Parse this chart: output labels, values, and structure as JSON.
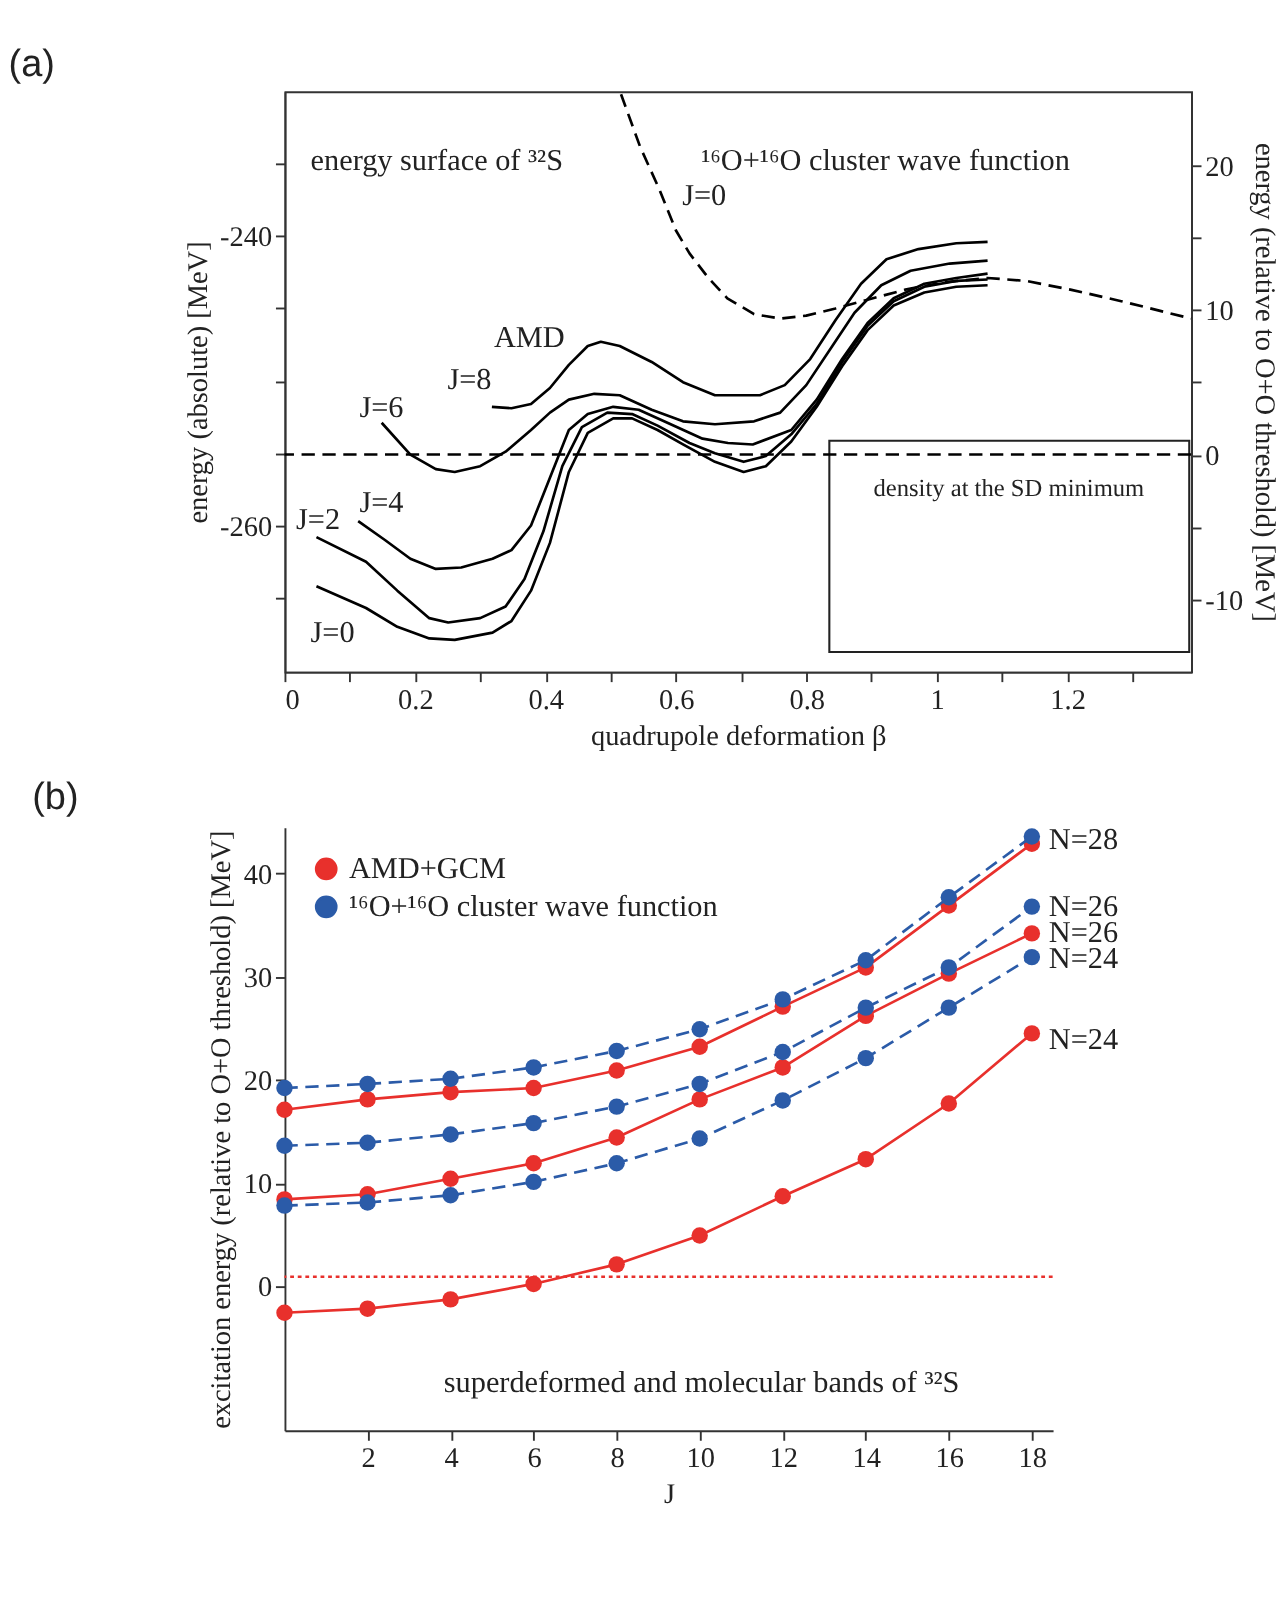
{
  "chart_data": [
    {
      "type": "line",
      "title": "(a)",
      "xlabel": "quadrupole deformation β",
      "ylabel": "energy (absolute) [MeV]",
      "y2label": "energy (relative to  O+O threshold) [MeV]",
      "xlim": [
        0,
        1.39
      ],
      "xticks": [
        0,
        {
          "value": 0.1,
          "label": null
        },
        0.2,
        {
          "value": 0.3,
          "label": null
        },
        0.4,
        {
          "value": 0.5,
          "label": null
        },
        0.6,
        {
          "value": 0.7,
          "label": null
        },
        0.8,
        {
          "value": 0.9,
          "label": null
        },
        1,
        {
          "value": 1.1,
          "label": null
        },
        1.2,
        {
          "value": 1.3,
          "label": null
        }
      ],
      "ylim": [
        -270.1,
        -230.0
      ],
      "yticks": [
        {
          "value": -265,
          "label": null
        },
        -260,
        {
          "value": -255,
          "label": null
        },
        {
          "value": -250,
          "label": null
        },
        {
          "value": -245,
          "label": null
        },
        -240,
        {
          "value": -235,
          "label": null
        }
      ],
      "y2lim": [
        -15.0,
        25.1
      ],
      "y2ticks": [
        -10,
        {
          "value": -5,
          "label": null
        },
        0,
        {
          "value": 5,
          "label": null
        },
        10,
        {
          "value": 15,
          "label": null
        },
        20
      ],
      "grid": false,
      "legend": false,
      "marker": "none",
      "line_style": "solid",
      "series": [
        {
          "color": "#000000",
          "x": [
            0.049,
            0.125,
            0.173,
            0.222,
            0.261,
            0.319,
            0.348,
            0.378,
            0.407,
            0.436,
            0.465,
            0.504,
            0.533,
            0.572,
            0.611,
            0.66,
            0.704,
            0.738,
            0.777,
            0.816,
            0.855,
            0.894,
            0.934,
            0.981,
            1.03,
            1.078
          ],
          "values": [
            -264.2,
            -265.7,
            -267.0,
            -267.8,
            -267.9,
            -267.4,
            -266.6,
            -264.5,
            -261.2,
            -256.3,
            -253.6,
            -252.6,
            -252.6,
            -253.4,
            -254.4,
            -255.6,
            -256.3,
            -255.9,
            -254.2,
            -251.8,
            -249.0,
            -246.5,
            -244.8,
            -243.9,
            -243.5,
            -243.4
          ]
        },
        {
          "color": "#000000",
          "x": [
            0.049,
            0.125,
            0.173,
            0.222,
            0.251,
            0.3,
            0.339,
            0.368,
            0.397,
            0.426,
            0.456,
            0.495,
            0.533,
            0.572,
            0.621,
            0.66,
            0.704,
            0.738,
            0.777,
            0.816,
            0.855,
            0.894,
            0.934,
            0.981,
            1.03,
            1.078
          ],
          "values": [
            -260.8,
            -262.5,
            -264.5,
            -266.4,
            -266.7,
            -266.4,
            -265.6,
            -263.7,
            -260.4,
            -255.9,
            -253.2,
            -252.2,
            -252.3,
            -253.1,
            -254.3,
            -255.0,
            -255.6,
            -255.2,
            -253.7,
            -251.6,
            -248.7,
            -246.2,
            -244.5,
            -243.5,
            -243.1,
            -243.0
          ]
        },
        {
          "color": "#000000",
          "x": [
            0.113,
            0.154,
            0.193,
            0.232,
            0.271,
            0.319,
            0.348,
            0.378,
            0.407,
            0.436,
            0.465,
            0.504,
            0.543,
            0.582,
            0.641,
            0.68,
            0.718,
            0.777,
            0.816,
            0.855,
            0.894,
            0.934,
            0.981,
            1.03,
            1.078
          ],
          "values": [
            -259.7,
            -261.0,
            -262.3,
            -263.0,
            -262.9,
            -262.3,
            -261.7,
            -260.0,
            -256.7,
            -253.4,
            -252.3,
            -251.8,
            -252.0,
            -252.8,
            -254.0,
            -254.3,
            -254.4,
            -253.4,
            -251.3,
            -248.5,
            -246.0,
            -244.3,
            -243.3,
            -242.9,
            -242.6
          ]
        },
        {
          "color": "#000000",
          "x": [
            0.149,
            0.193,
            0.232,
            0.261,
            0.3,
            0.339,
            0.378,
            0.407,
            0.436,
            0.475,
            0.514,
            0.563,
            0.611,
            0.66,
            0.72,
            0.76,
            0.8,
            0.84,
            0.874,
            0.915,
            0.96,
            1.02,
            1.078
          ],
          "values": [
            -252.9,
            -255.1,
            -256.1,
            -256.3,
            -255.9,
            -254.9,
            -253.4,
            -252.2,
            -251.3,
            -250.9,
            -251.0,
            -252.0,
            -252.8,
            -253.0,
            -252.8,
            -252.2,
            -250.3,
            -247.6,
            -245.3,
            -243.4,
            -242.4,
            -241.9,
            -241.7
          ]
        },
        {
          "color": "#000000",
          "x": [
            0.318,
            0.348,
            0.378,
            0.407,
            0.436,
            0.465,
            0.485,
            0.514,
            0.563,
            0.611,
            0.66,
            0.729,
            0.767,
            0.806,
            0.845,
            0.884,
            0.923,
            0.972,
            1.03,
            1.078
          ],
          "values": [
            -251.8,
            -251.9,
            -251.6,
            -250.5,
            -248.9,
            -247.6,
            -247.3,
            -247.6,
            -248.7,
            -250.1,
            -251.0,
            -251.0,
            -250.3,
            -248.5,
            -245.8,
            -243.3,
            -241.6,
            -240.9,
            -240.5,
            -240.4
          ]
        },
        {
          "color": "#000000",
          "axis": "y2",
          "line_style": "dashed",
          "x": [
            0.516,
            0.545,
            0.575,
            0.6,
            0.621,
            0.65,
            0.679,
            0.72,
            0.76,
            0.8,
            0.845,
            0.894,
            0.952,
            1.01,
            1.078,
            1.137,
            1.205,
            1.283,
            1.39
          ],
          "values": [
            24.9,
            21.3,
            18.3,
            15.5,
            13.9,
            12.2,
            10.8,
            9.7,
            9.4,
            9.6,
            10.1,
            10.7,
            11.4,
            11.9,
            12.2,
            12.0,
            11.4,
            10.6,
            9.4
          ]
        }
      ],
      "ref_lines": [
        {
          "axis": "y2",
          "value": 0,
          "color": "#000000",
          "line_style": "dashed"
        }
      ],
      "annotations": [
        "energy surface of ³²S",
        "¹⁶O+¹⁶O cluster wave function",
        "density at the SD minimum",
        "J=0",
        "AMD",
        "J=8",
        "J=6",
        "J=4",
        "J=2",
        "J=0"
      ]
    },
    {
      "type": "line",
      "title": "(b)",
      "xlabel": "J",
      "ylabel": "excitation energy (relative to O+O threshold) [MeV]",
      "xlim": [
        0,
        18.5
      ],
      "xticks": [
        2,
        4,
        6,
        8,
        10,
        12,
        14,
        16,
        18
      ],
      "ylim": [
        -14,
        44.5
      ],
      "yticks": [
        0,
        10,
        20,
        30,
        40
      ],
      "grid": false,
      "legend": "top left",
      "marker": "circle",
      "series": [
        {
          "name": "AMD+GCM",
          "color": "#e8302c",
          "line_style": "solid",
          "x": [
            0,
            2,
            4,
            6,
            8,
            10,
            12,
            14,
            16,
            18,
            null,
            0,
            2,
            4,
            6,
            8,
            10,
            12,
            14,
            16,
            18,
            null,
            0,
            2,
            4,
            6,
            8,
            10,
            12,
            14,
            16,
            18
          ],
          "values": [
            -2.6,
            -2.2,
            -1.3,
            0.2,
            2.1,
            4.9,
            8.7,
            12.3,
            17.7,
            24.5,
            null,
            8.4,
            8.9,
            10.4,
            11.9,
            14.4,
            18.1,
            21.2,
            26.2,
            30.3,
            34.2,
            null,
            17.1,
            18.1,
            18.8,
            19.2,
            20.9,
            23.2,
            27.1,
            30.9,
            36.9,
            42.9
          ]
        },
        {
          "name": "¹⁶O+¹⁶O cluster wave function",
          "color": "#2b5ba8",
          "line_style": "dashed",
          "x": [
            0,
            2,
            4,
            6,
            8,
            10,
            12,
            14,
            16,
            18,
            null,
            0,
            2,
            4,
            6,
            8,
            10,
            12,
            14,
            16,
            18,
            null,
            0,
            2,
            4,
            6,
            8,
            10,
            12,
            14,
            16,
            18
          ],
          "values": [
            7.8,
            8.1,
            8.8,
            10.1,
            11.9,
            14.3,
            18.0,
            22.1,
            27.0,
            31.9,
            null,
            13.6,
            13.9,
            14.7,
            15.8,
            17.4,
            19.6,
            22.7,
            27.0,
            30.9,
            36.8,
            null,
            19.2,
            19.6,
            20.1,
            21.2,
            22.8,
            24.9,
            27.8,
            31.6,
            37.7,
            43.6
          ]
        }
      ],
      "ref_lines": [
        {
          "axis": "y",
          "value": 0.9,
          "color": "#e8302c",
          "line_style": "dotted"
        }
      ],
      "annotations": [
        "superdeformed and molecular bands of ³²S",
        "N=28",
        "N=26",
        "N=26",
        "N=24",
        "N=24"
      ]
    }
  ]
}
